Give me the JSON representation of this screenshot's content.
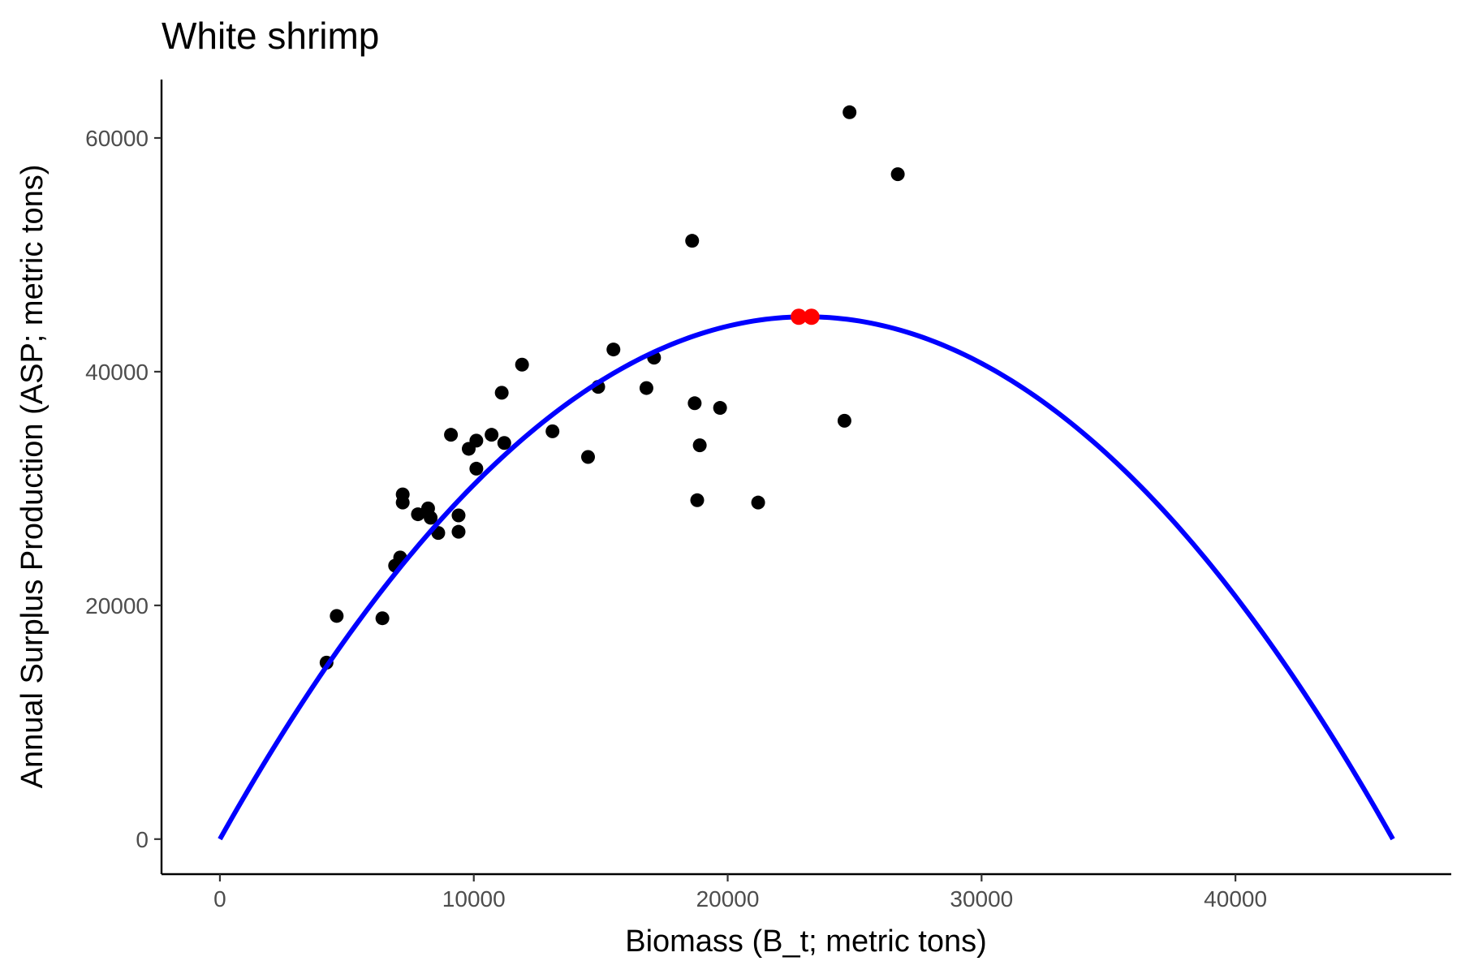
{
  "chart_data": {
    "type": "scatter",
    "title": "White shrimp",
    "xlabel": "Biomass (B_t; metric tons)",
    "ylabel": "Annual Surplus Production (ASP; metric tons)",
    "xlim": [
      -2300,
      48500
    ],
    "ylim": [
      -3000,
      65000
    ],
    "x_ticks": [
      0,
      10000,
      20000,
      30000,
      40000
    ],
    "x_tick_labels": [
      "0",
      "10000",
      "20000",
      "30000",
      "40000"
    ],
    "y_ticks": [
      0,
      20000,
      40000,
      60000
    ],
    "y_tick_labels": [
      "0",
      "20000",
      "40000",
      "60000"
    ],
    "grid": false,
    "legend": "none",
    "series": [
      {
        "type": "scatter",
        "color": "#000000",
        "points": [
          [
            4200,
            15100
          ],
          [
            4600,
            19100
          ],
          [
            6400,
            18900
          ],
          [
            6900,
            23400
          ],
          [
            7100,
            24100
          ],
          [
            7200,
            29500
          ],
          [
            7200,
            28800
          ],
          [
            7800,
            27800
          ],
          [
            8200,
            28300
          ],
          [
            8300,
            27500
          ],
          [
            8600,
            26200
          ],
          [
            9100,
            34600
          ],
          [
            9400,
            26300
          ],
          [
            9400,
            27700
          ],
          [
            9800,
            33400
          ],
          [
            10100,
            31700
          ],
          [
            10100,
            34100
          ],
          [
            10700,
            34600
          ],
          [
            11100,
            38200
          ],
          [
            11200,
            33900
          ],
          [
            11900,
            40600
          ],
          [
            13100,
            34900
          ],
          [
            14500,
            32700
          ],
          [
            14900,
            38700
          ],
          [
            15500,
            41900
          ],
          [
            16800,
            38600
          ],
          [
            17100,
            41200
          ],
          [
            18600,
            51200
          ],
          [
            18700,
            37300
          ],
          [
            18800,
            29000
          ],
          [
            18900,
            33700
          ],
          [
            19700,
            36900
          ],
          [
            21200,
            28800
          ],
          [
            24600,
            35800
          ],
          [
            24800,
            62200
          ],
          [
            26700,
            56900
          ]
        ]
      },
      {
        "type": "line",
        "color": "#0000ff",
        "curve": "parabola",
        "x_start": 0,
        "x_end": 46200,
        "vertex_x": 23100,
        "vertex_y": 44700
      },
      {
        "type": "scatter",
        "color": "#ff0000",
        "points": [
          [
            22800,
            44700
          ],
          [
            23300,
            44700
          ]
        ]
      }
    ]
  }
}
